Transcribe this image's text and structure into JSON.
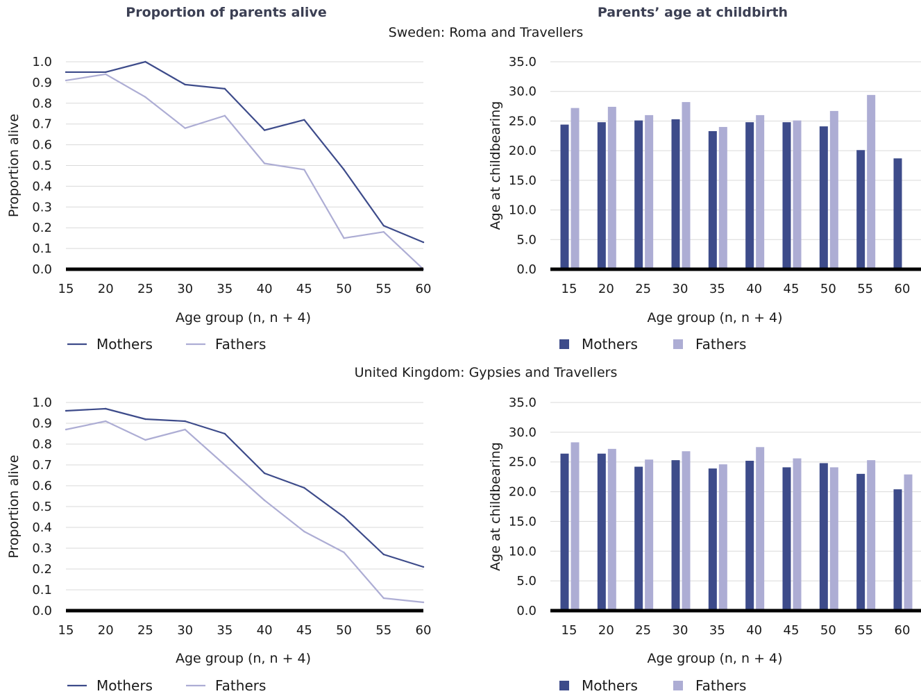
{
  "titles": {
    "left_column": "Proportion of parents alive",
    "right_column": "Parents’ age at childbirth",
    "section_sweden": "Sweden: Roma and Travellers",
    "section_uk": "United Kingdom: Gypsies and Travellers"
  },
  "legend": {
    "mothers": "Mothers",
    "fathers": "Fathers"
  },
  "colors": {
    "mothers": "#3d4b8a",
    "fathers": "#adadd4",
    "baseline": "#000000",
    "grid": "#d9d9d9"
  },
  "chart_data": [
    {
      "id": "sweden-alive",
      "type": "line",
      "xlabel": "Age group (n, n + 4)",
      "ylabel": "Proportion alive",
      "categories": [
        "15",
        "20",
        "25",
        "30",
        "35",
        "40",
        "45",
        "50",
        "55",
        "60"
      ],
      "y_ticks": [
        "0.0",
        "0.1",
        "0.2",
        "0.3",
        "0.4",
        "0.5",
        "0.6",
        "0.7",
        "0.8",
        "0.9",
        "1.0"
      ],
      "ylim": [
        0,
        1.0
      ],
      "series": [
        {
          "name": "Mothers",
          "values": [
            0.95,
            0.95,
            1.0,
            0.89,
            0.87,
            0.67,
            0.72,
            0.48,
            0.21,
            0.13
          ]
        },
        {
          "name": "Fathers",
          "values": [
            0.91,
            0.94,
            0.83,
            0.68,
            0.74,
            0.51,
            0.48,
            0.15,
            0.18,
            0.0
          ]
        }
      ],
      "grid": true,
      "legend_position": "bottom-left"
    },
    {
      "id": "sweden-age",
      "type": "bar",
      "xlabel": "Age group (n, n + 4)",
      "ylabel": "Age at childbearing",
      "categories": [
        "15",
        "20",
        "25",
        "30",
        "35",
        "40",
        "45",
        "50",
        "55",
        "60"
      ],
      "y_ticks": [
        "0.0",
        "5.0",
        "10.0",
        "15.0",
        "20.0",
        "25.0",
        "30.0",
        "35.0"
      ],
      "ylim": [
        0,
        35
      ],
      "series": [
        {
          "name": "Mothers",
          "values": [
            24.4,
            24.8,
            25.1,
            25.3,
            23.3,
            24.8,
            24.8,
            24.1,
            20.1,
            18.7
          ]
        },
        {
          "name": "Fathers",
          "values": [
            27.2,
            27.4,
            26.0,
            28.2,
            24.0,
            26.0,
            25.1,
            26.7,
            29.4,
            null
          ]
        }
      ],
      "grid": true,
      "legend_position": "bottom-left"
    },
    {
      "id": "uk-alive",
      "type": "line",
      "xlabel": "Age group (n, n + 4)",
      "ylabel": "Proportion alive",
      "categories": [
        "15",
        "20",
        "25",
        "30",
        "35",
        "40",
        "45",
        "50",
        "55",
        "60"
      ],
      "y_ticks": [
        "0.0",
        "0.1",
        "0.2",
        "0.3",
        "0.4",
        "0.5",
        "0.6",
        "0.7",
        "0.8",
        "0.9",
        "1.0"
      ],
      "ylim": [
        0,
        1.0
      ],
      "series": [
        {
          "name": "Mothers",
          "values": [
            0.96,
            0.97,
            0.92,
            0.91,
            0.85,
            0.66,
            0.59,
            0.45,
            0.27,
            0.21
          ]
        },
        {
          "name": "Fathers",
          "values": [
            0.87,
            0.91,
            0.82,
            0.87,
            0.7,
            0.53,
            0.38,
            0.28,
            0.06,
            0.04
          ]
        }
      ],
      "grid": true,
      "legend_position": "bottom-left"
    },
    {
      "id": "uk-age",
      "type": "bar",
      "xlabel": "Age group (n, n + 4)",
      "ylabel": "Age at childbearing",
      "categories": [
        "15",
        "20",
        "25",
        "30",
        "35",
        "40",
        "45",
        "50",
        "55",
        "60"
      ],
      "y_ticks": [
        "0.0",
        "5.0",
        "10.0",
        "15.0",
        "20.0",
        "25.0",
        "30.0",
        "35.0"
      ],
      "ylim": [
        0,
        35
      ],
      "series": [
        {
          "name": "Mothers",
          "values": [
            26.4,
            26.4,
            24.2,
            25.3,
            23.9,
            25.2,
            24.1,
            24.8,
            23.0,
            20.4
          ]
        },
        {
          "name": "Fathers",
          "values": [
            28.3,
            27.2,
            25.4,
            26.8,
            24.6,
            27.5,
            25.6,
            24.1,
            25.3,
            22.9
          ]
        }
      ],
      "grid": true,
      "legend_position": "bottom-left"
    }
  ]
}
